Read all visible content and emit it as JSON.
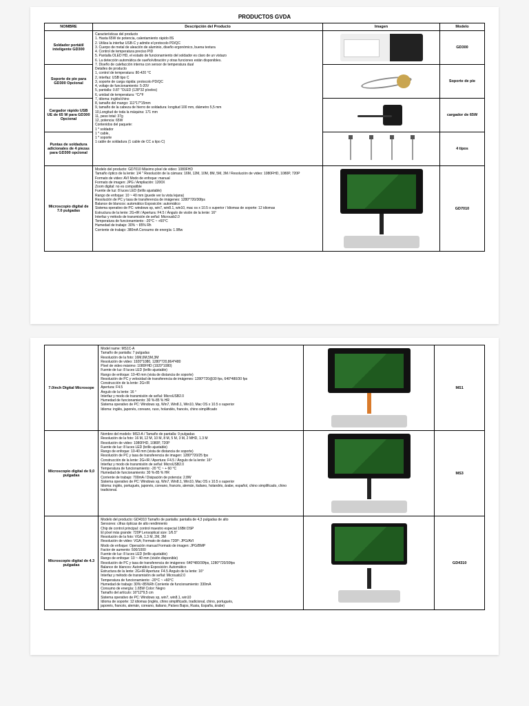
{
  "title": "PRODUCTOS GVDA",
  "headers": {
    "name": "NOMBRE",
    "desc": "Descripción del Producto",
    "img": "Imagen",
    "model": "Modelo"
  },
  "page1": [
    {
      "name": "Soldador portátil inteligente GD300",
      "model": "GD300",
      "desc": [
        "Características del producto",
        "1. Hasta 65W de potencia, calentamiento rápido 8S",
        "2. Utiliza la interfaz USB-C y admite el protocolo PD/QC",
        "3. Cuerpo de metal de aleación de aluminio, diseño ergonómico, buena textura",
        "4. Control de temperatura preciso PID",
        "5. Pantalla OLED HD, el estado de funcionamiento del soldador es claro de un vistazo",
        "6. La detección automática de sueño/vibración y otras funciones están disponibles.",
        "7. Diseño de calefacción interna con sensor de temperatura dual"
      ]
    },
    {
      "name": "Soporte de pie para GD300 Opcional",
      "model": "Soporte de pie",
      "desc": [
        "Detalles de producto",
        "1, control de temperatura: 80-420 °C",
        "2, interfaz: USB tipo C",
        "3, soporte de carga rápida: protocolo PD/QC",
        "4, voltaje de funcionamiento: 5-20V",
        "5, pantalla: 0.87 \"OLED (128*32 píxeles)",
        "6, unidad de temperatura: °C/°F"
      ]
    },
    {
      "name": "Cargador rápido USB UE de 65 W para GD300 Opcional",
      "model": "cargador de 65W",
      "desc": [
        "7, idioma: inglés/chino",
        "8, tamaño del mango: 111*17*15mm",
        "9, tamaño de la cabeza de hierro de soldadura: longitud 100 mm, diámetro 5,5 mm",
        "10,Longitud de toda la máquina: 171 mm",
        "11, peso total: 37g",
        "12, potencia: 65W"
      ]
    },
    {
      "name": "Puntas de soldadura adicionales de 4 piezas para GD300 opcional",
      "model": "4 tipos",
      "desc": [
        "Contenidos del paquete:",
        "1 * soldador",
        "1 * cable,",
        "1 * soporte",
        "1 cable de soldadura (1 cable de CC a tipo C)"
      ]
    },
    {
      "name": "Microscopio digital de 7.0 pulgadas",
      "model": "GD7010",
      "desc": [
        "Modelo del producto: GD7010 Máximo píxel de video: 1080FHD",
        "Tamaño óptico de la lente: 1/4 \" Resolución de la cámara: 16M, 12M, 10M, 8M, 5M, 3M / Resolución de video: 1080FHD, 1080P, 720P",
        "Formato de video: AVI Modo de enfoque: manual",
        "Formato de imagen: JPG / Ampliación: 1200X",
        "Zoom digital: no es compatible",
        "Fuente de luz: 8 luces LED (brillo ajustable)",
        "Rango de enfoque: 10 ~ 40 mm (puede ver la vista lejana)",
        "Resolución de PC y tasa de transferencia de imágenes: 1280*720/30fps",
        "Balance de blancos: automático Exposición: automático",
        "Sistema operativo de PC: windows xp, win7, win8.1, win10, mac os x 10.5 o superior / Idiomas de soporte: 12 idiomas",
        "Estructura de la lente: 2G+IR / Apertura: F4.5 / Ángulo de visión de la lente: 16°",
        "Interfaz y método de transmisión de señal: Microusb2.0",
        "Temperatura de funcionamiento: -20°C ~ +60°C",
        "Humedad de trabajo: 30% ~ 85% Rh",
        "Corriente de trabajo: 380mA Consumo de energía: 1.9Bw"
      ]
    }
  ],
  "page2": [
    {
      "name": "7.0inch Digital Microsope",
      "model": "MS1",
      "desc": [
        "Model name: MS1C-A",
        "Tamaño de pantalla: 7 pulgadas",
        "Resolución de la foto: 16M,6M,5M,3M",
        "Resolución de video: 1920*1080, 1280*720,864*480",
        "Píxel de video máximo: 1080FHD (1920*1080)",
        "Fuente de luz: 8 luces LED (brillo ajustable)",
        "Rango de enfoque: 10-40 mm (vista de distancia de soporte)",
        "Resolución de PC y velocidad de transferencia de imágenes: 1280*720@30 fps, 640*480/30 fps",
        "Construcción de la lente: 2G+IR",
        "Apertura: F4.5",
        "Ángulo de la lente: 16 °",
        "Interfaz y modo de transmisión de señal: MicroUSB2.0",
        "Humedad de funcionamiento: 30 %-85 % HR",
        "Sistema operativo de PC: Windows xp, Win7, Win8.1, Win10, Mac OS x 10.5 o superior",
        "Idioma: inglés, japonés, coreano, ruso, holandés, francés, chino simplificado"
      ]
    },
    {
      "name": "Microscopio digital de 9,0 pulgadas",
      "model": "MS3",
      "desc": [
        "Nombre del modelo: MS3-A / Tamaño de pantalla: 9 pulgadas",
        "Resolución de la foto: 16 M, 12 M, 10 M, 8 M, 5 M, 3 M, 2 MHD, 1.3 M",
        "Resolución de video: 1080FHD, 1080P, 720P",
        "Fuente de luz: 8 luces LED (brillo ajustable)",
        "Rango de enfoque: 10-40 mm (vista de distancia de soporte)",
        "Resolución de PC y tasa de transferencia de imagen: 1280*720/25 fps",
        "Construcción de la lente: 2G+IR / Apertura: F4.5 / Ángulo de la lente: 16°",
        "Interfaz y modo de transmisión de señal: MicroUSB2.0",
        "Temperatura de funcionamiento: -20 °C ~ + 60 °C",
        "Humedad de funcionamiento: 30 %-85 % HR",
        "Corriente de trabajo: 700mA / Disipación de potencia: 2.8W",
        "Sistema operativo de PC: Windows xp, Win7, Win8.1, Win10, Mac OS x 10.5 o superior",
        "Idioma: inglés, portugués, japonés, coreano, francés, alemán, italiano, holandés, árabe, español, chino simplificado, chino tradicional."
      ]
    },
    {
      "name": "Microscopio digital de 4.3 pulgadas",
      "model": "GD4310",
      "desc": [
        "Modelo del producto: GD4310 Tamaño de pantalla: pantalla de 4,3 pulgadas de alto",
        "Sensores: cifras ópticas de alto rendimiento",
        "Chip de control principal: control maestro especial 16Bit DSP",
        "El píxel más grande: 720P Lensoptical size: 1/6.5\"",
        "Resolución de la foto: VGA, 1.3 M, 2M, 3M",
        "Resolución de video: VGA; Formato de datos 720P: JPG/AVI",
        "Modo de enfoque: Operación manual Formato de imagen: JPG/BMP",
        "Factor de aumento: 500/1000",
        "Fuente de luz: 8 luces LED (brillo ajustable)",
        "Rango de enfoque: 10 ~ 40 mm (visión disponible)",
        "Resolución de PC y tasa de transferencia de imágenes: 640*480/30fps, 1280*720/30fps",
        "Balance de blancos: Automático Exposición: Automático",
        "Estructura de la lente: 2G+IR Apertura: F4.5 Ángulo de la lente: 16°",
        "Interfaz y método de transmisión de señal: Microusb2.0",
        "Temperatura de funcionamiento: -20°C ~ +60°C",
        "Humedad de trabajo: 30%~85%Rh Corriente de funcionamiento: 330mA",
        "Consumo de energía: 1.65W Color: Negro",
        "Tamaño del artículo: 16*12*9,5 cm",
        "Sistema operativo de PC: Windows xp, win7, win8.1, win10",
        "Idioma de soporte: 12 idiomas (inglés, chino simplificado, tradicional, chino, portugués,",
        "japonés, francés, alemán, coreano, italiano, Países Bajos, Rusia, España, árabe)"
      ]
    }
  ]
}
